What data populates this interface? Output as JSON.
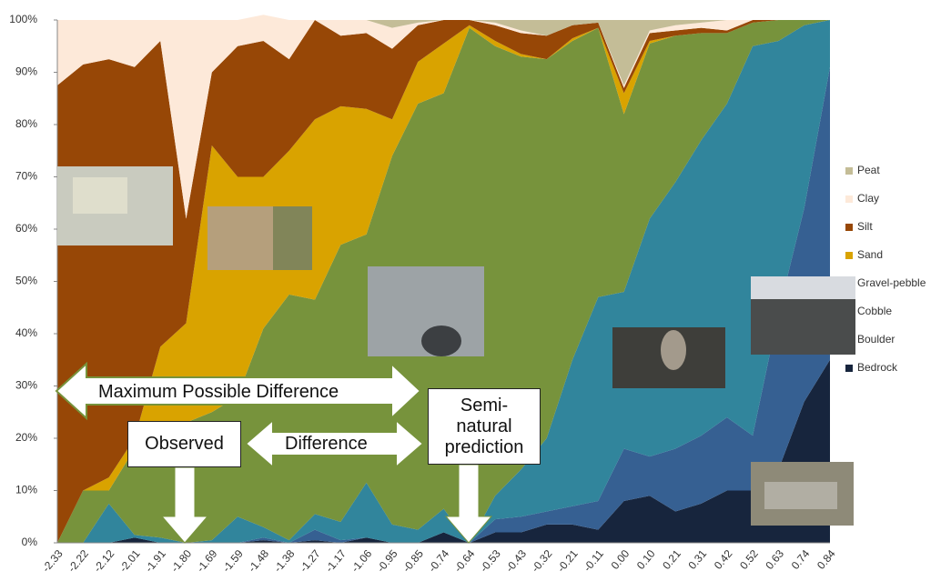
{
  "chart_data": {
    "type": "stacked_area_percent",
    "categories": [
      "-2.33",
      "-2.22",
      "-2.12",
      "-2.01",
      "-1.91",
      "-1.80",
      "-1.69",
      "-1.59",
      "-1.48",
      "-1.38",
      "-1.27",
      "-1.17",
      "-1.06",
      "-0.95",
      "-0.85",
      "-0.74",
      "-0.64",
      "-0.53",
      "-0.43",
      "-0.32",
      "-0.21",
      "-0.11",
      "0.00",
      "0.10",
      "0.21",
      "0.31",
      "0.42",
      "0.52",
      "0.63",
      "0.74",
      "0.84"
    ],
    "series": [
      {
        "name": "Peat",
        "color": "#c4bd97",
        "values": [
          0,
          0,
          0,
          0,
          0,
          0,
          0,
          0,
          0,
          0,
          0,
          0,
          0,
          1.5,
          0.5,
          0,
          0,
          0.5,
          2,
          3,
          1,
          0.5,
          12.5,
          2,
          1,
          0.5,
          0,
          0,
          0,
          0,
          0
        ]
      },
      {
        "name": "Clay",
        "color": "#fde9d9",
        "values": [
          12.5,
          8.5,
          7.5,
          9,
          4,
          38,
          10,
          5,
          5,
          7.5,
          0,
          3,
          2.5,
          4,
          0.5,
          0,
          0,
          0.5,
          0.5,
          0,
          0,
          0,
          0.5,
          0.5,
          1,
          1,
          2,
          0,
          0,
          0,
          0
        ]
      },
      {
        "name": "Silt",
        "color": "#974706",
        "values": [
          87.5,
          81.5,
          80,
          71,
          58.5,
          20,
          14,
          25,
          26,
          17.5,
          19,
          13.5,
          14.5,
          13.5,
          7,
          4.5,
          1,
          3,
          4,
          4.5,
          2.5,
          1,
          1,
          1.5,
          1,
          1,
          0.5,
          0.5,
          0,
          0,
          0
        ]
      },
      {
        "name": "Sand",
        "color": "#d9a300",
        "values": [
          0,
          0,
          2.5,
          2,
          15.5,
          19,
          51,
          42,
          29,
          27.5,
          34.5,
          26.5,
          24,
          7,
          8,
          9.5,
          0.5,
          1,
          0.5,
          0,
          0.5,
          0,
          4,
          0.5,
          0,
          0,
          0,
          0,
          0,
          0,
          0
        ]
      },
      {
        "name": "Gravel-pebble",
        "color": "#77933c",
        "values": [
          0,
          10,
          2.5,
          16.5,
          21,
          23,
          24.5,
          23,
          38,
          47,
          41,
          53,
          47.5,
          70.5,
          81.5,
          79.5,
          98.5,
          86,
          79,
          72.5,
          61,
          51.5,
          34,
          33.5,
          28,
          20.5,
          13.5,
          4.5,
          4,
          1,
          0
        ]
      },
      {
        "name": "Cobble",
        "color": "#31859c",
        "values": [
          0,
          0,
          7.5,
          0.5,
          1,
          0,
          0.5,
          5,
          2,
          0.5,
          3,
          3.5,
          10.5,
          3.5,
          2.5,
          4.5,
          0,
          4.5,
          9,
          14,
          28,
          39,
          30,
          45.5,
          51,
          56.5,
          60,
          74.5,
          52,
          35,
          9
        ]
      },
      {
        "name": "Boulder",
        "color": "#366092",
        "values": [
          0,
          0,
          0,
          0,
          0,
          0,
          0,
          0,
          0.5,
          0,
          2,
          0.5,
          0,
          0,
          0,
          0,
          0,
          2.5,
          3,
          2.5,
          3.5,
          5.5,
          10,
          7.5,
          12,
          13,
          14,
          10.5,
          30,
          37,
          56
        ]
      },
      {
        "name": "Bedrock",
        "color": "#17253d",
        "values": [
          0,
          0,
          0,
          1,
          0,
          0,
          0,
          0,
          0.5,
          0,
          0.5,
          0,
          1,
          0,
          0,
          2,
          0,
          2,
          2,
          3.5,
          3.5,
          2.5,
          8,
          9,
          6,
          7.5,
          10,
          10,
          14,
          27,
          35
        ]
      }
    ],
    "ylim": [
      0,
      100
    ],
    "yticks": [
      {
        "value": 0,
        "label": "0%"
      },
      {
        "value": 10,
        "label": "10%"
      },
      {
        "value": 20,
        "label": "20%"
      },
      {
        "value": 30,
        "label": "30%"
      },
      {
        "value": 40,
        "label": "40%"
      },
      {
        "value": 50,
        "label": "50%"
      },
      {
        "value": 60,
        "label": "60%"
      },
      {
        "value": 70,
        "label": "70%"
      },
      {
        "value": 80,
        "label": "80%"
      },
      {
        "value": 90,
        "label": "90%"
      },
      {
        "value": 100,
        "label": "100%"
      }
    ],
    "legend": "right",
    "annotations": [
      "Maximum Possible Difference",
      "Observed",
      "Difference",
      "Semi-natural prediction"
    ]
  }
}
